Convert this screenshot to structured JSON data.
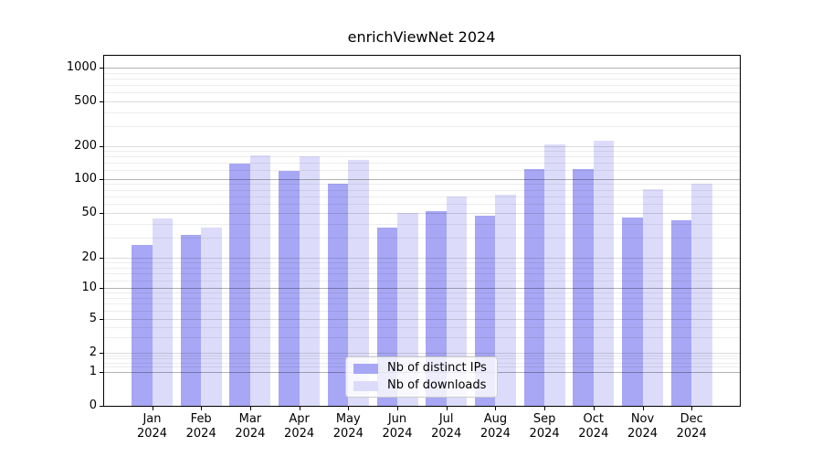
{
  "title": "enrichViewNet 2024",
  "chart_data": {
    "type": "bar",
    "title": "enrichViewNet 2024",
    "x_tick_months": [
      "Jan",
      "Feb",
      "Mar",
      "Apr",
      "May",
      "Jun",
      "Jul",
      "Aug",
      "Sep",
      "Oct",
      "Nov",
      "Dec"
    ],
    "x_tick_year": "2024",
    "series": [
      {
        "name": "Nb of distinct IPs",
        "color": "#a7a7f5",
        "values": [
          26,
          32,
          138,
          119,
          91,
          37,
          51,
          47,
          122,
          124,
          45,
          43
        ]
      },
      {
        "name": "Nb of downloads",
        "color": "#dcdcfa",
        "values": [
          44,
          37,
          164,
          162,
          150,
          50,
          70,
          72,
          205,
          222,
          81,
          90
        ]
      }
    ],
    "yscale": "symlog",
    "yticks": [
      0,
      1,
      2,
      5,
      10,
      20,
      50,
      100,
      200,
      500,
      1000
    ],
    "ylim": [
      0,
      1300
    ],
    "grid": true,
    "legend_position": "lower center"
  },
  "legend": {
    "items": [
      {
        "label": "Nb of distinct IPs",
        "color": "#a7a7f5"
      },
      {
        "label": "Nb of downloads",
        "color": "#dcdcfa"
      }
    ]
  }
}
